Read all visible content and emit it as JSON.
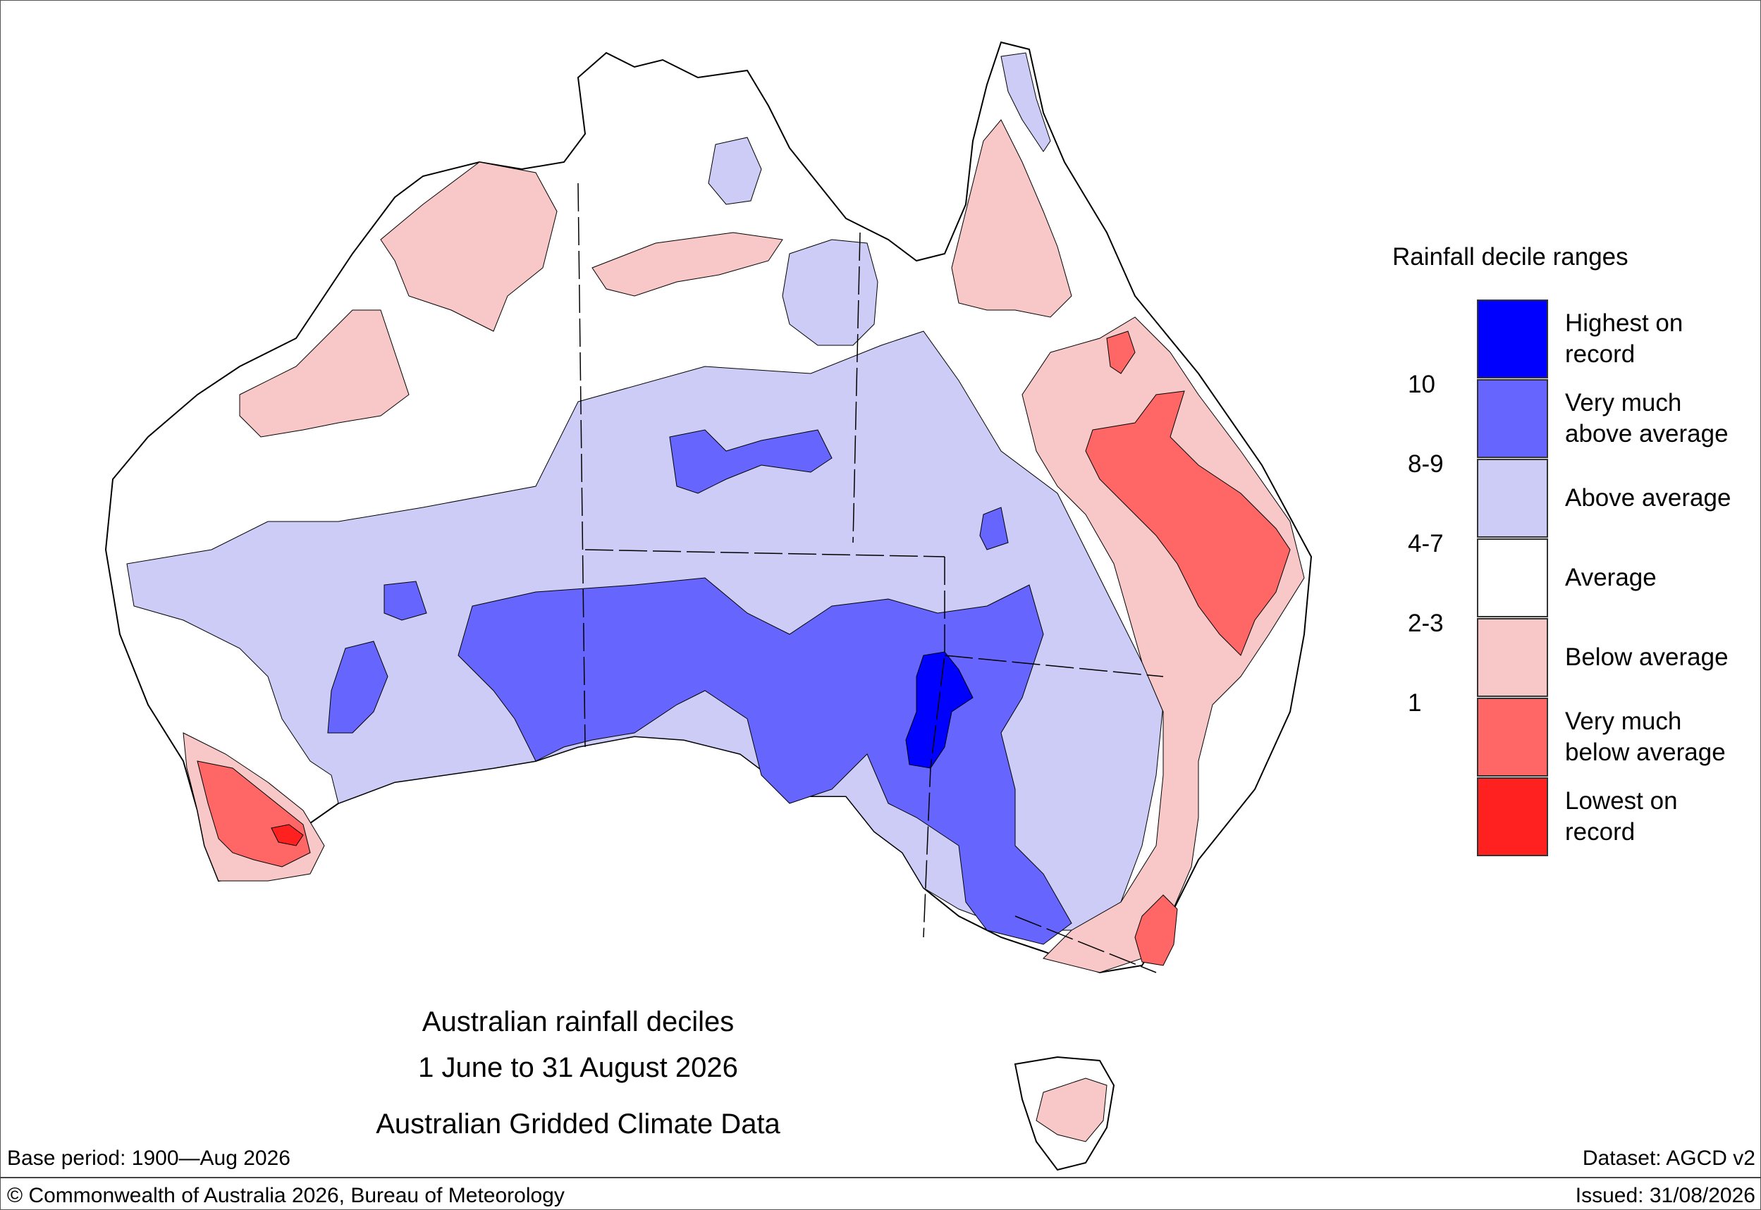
{
  "legend": {
    "title": "Rainfall decile ranges",
    "categories": [
      {
        "label_line1": "Highest on",
        "label_line2": "record",
        "range": "",
        "color": "#0000ff"
      },
      {
        "label_line1": "Very much",
        "label_line2": "above average",
        "range": "10",
        "color": "#6666ff"
      },
      {
        "label_line1": "Above average",
        "label_line2": "",
        "range": "8-9",
        "color": "#ccccf7"
      },
      {
        "label_line1": "Average",
        "label_line2": "",
        "range": "4-7",
        "color": "#ffffff"
      },
      {
        "label_line1": "Below average",
        "label_line2": "",
        "range": "2-3",
        "color": "#f8c8c8"
      },
      {
        "label_line1": "Very much",
        "label_line2": "below average",
        "range": "1",
        "color": "#ff6666"
      },
      {
        "label_line1": "Lowest on",
        "label_line2": "record",
        "range": "",
        "color": "#ff2020"
      }
    ]
  },
  "title": {
    "line1": "Australian rainfall deciles",
    "line2": "1 June to 31 August 2026",
    "line3": "Australian Gridded Climate Data"
  },
  "footer": {
    "base_period": "Base period: 1900—Aug 2026",
    "dataset": "Dataset: AGCD v2",
    "copyright": "© Commonwealth of Australia 2026, Bureau of Meteorology",
    "issued": "Issued: 31/08/2026"
  }
}
